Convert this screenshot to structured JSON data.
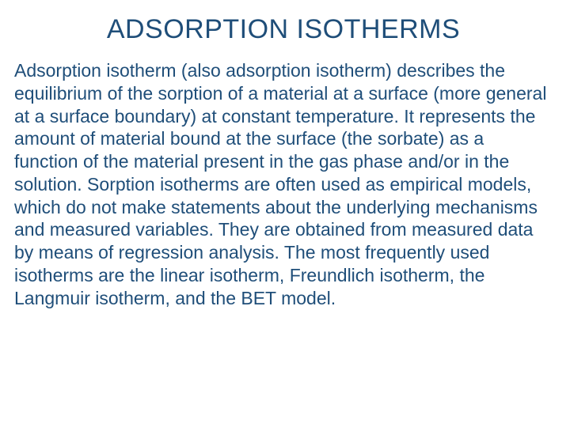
{
  "slide": {
    "title": "ADSORPTION ISOTHERMS",
    "body": "Adsorption isotherm (also adsorption isotherm) describes the equilibrium of the sorption of a material at a surface (more general at a surface boundary) at constant temperature. It represents the amount of material bound at the surface (the sorbate) as a function of the material present in the gas phase and/or in the solution. Sorption isotherms are often used as empirical models, which do not make statements about the underlying mechanisms and measured variables. They are obtained from measured data by means of regression analysis. The most frequently used isotherms are the linear isotherm, Freundlich isotherm, the Langmuir isotherm, and the BET model.",
    "colors": {
      "title_color": "#1f4e79",
      "body_color": "#1f4e79",
      "background": "#ffffff"
    },
    "typography": {
      "title_fontsize": 34,
      "title_weight": 400,
      "body_fontsize": 23,
      "body_lineheight": 1.25,
      "font_family": "Arial"
    }
  }
}
